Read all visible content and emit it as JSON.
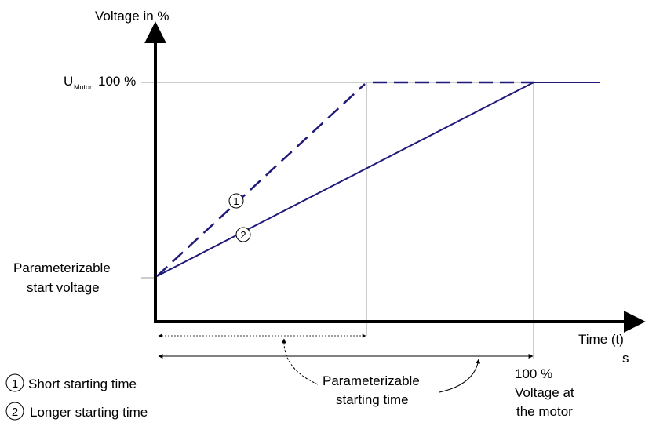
{
  "axes": {
    "y_label": "Voltage in %",
    "x_label_line1": "Time (t)",
    "x_label_line2": "s"
  },
  "labels": {
    "umotor_main": "U",
    "umotor_sub": "Motor",
    "umotor_value": "100 %",
    "start_voltage_line1": "Parameterizable",
    "start_voltage_line2": "start voltage",
    "starting_time_line1": "Parameterizable",
    "starting_time_line2": "starting time",
    "motor_voltage_line1": "100 %",
    "motor_voltage_line2": "Voltage at",
    "motor_voltage_line3": "the motor"
  },
  "markers": {
    "curve1": "1",
    "curve2": "2"
  },
  "legend": [
    {
      "number": "1",
      "text": "Short starting time"
    },
    {
      "number": "2",
      "text": "Longer starting time"
    }
  ],
  "colors": {
    "curve": "#1f1a7a",
    "axis": "#000000",
    "guide": "#999999"
  }
}
